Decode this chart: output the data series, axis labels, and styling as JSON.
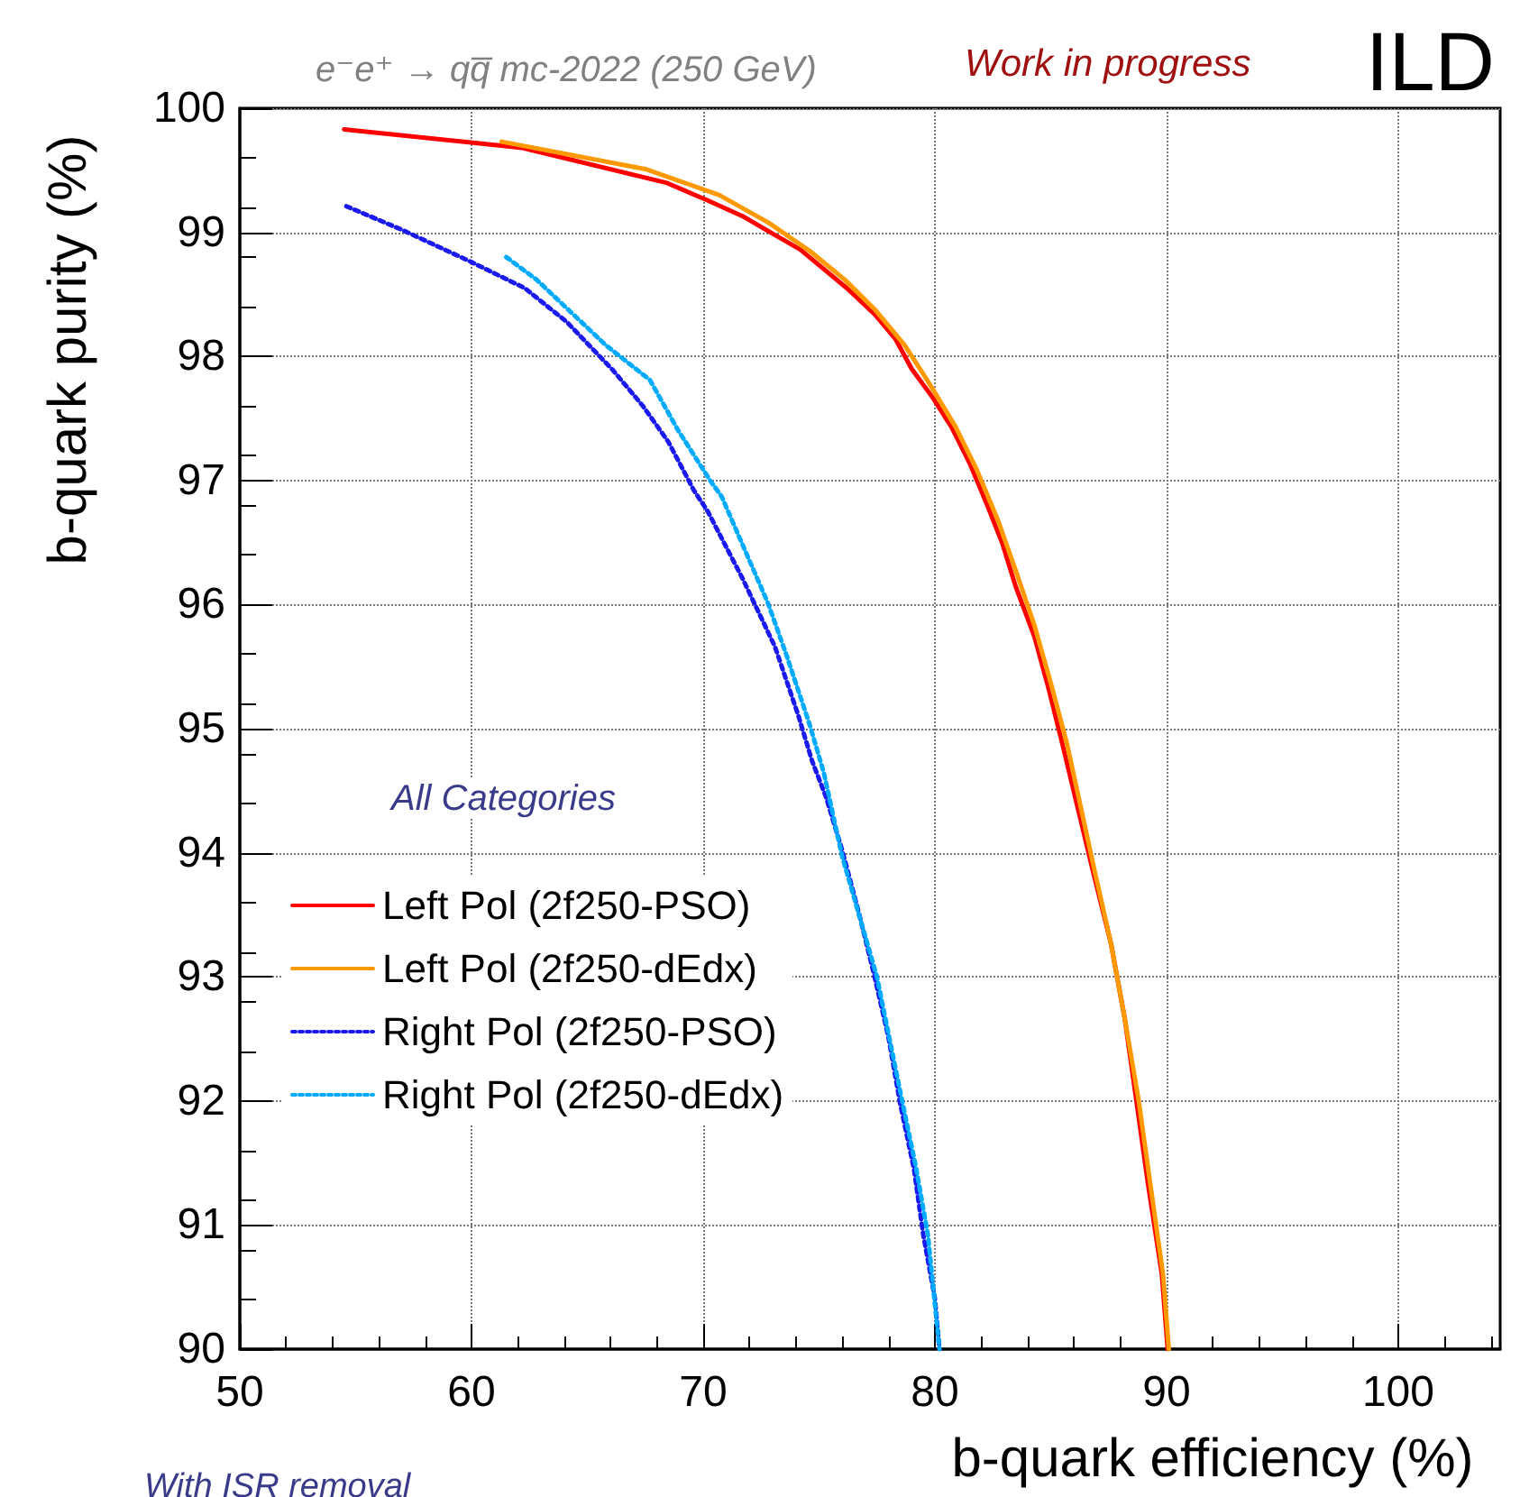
{
  "chart_data": {
    "type": "line",
    "title": "e⁻e⁺ → qq̅ mc-2022 (250 GeV)",
    "xlabel": "b-quark efficiency (%)",
    "ylabel": "b-quark purity (%)",
    "annotations": [
      "Work in progress",
      "ILD",
      "All Categories",
      "With ISR removal"
    ],
    "xlim": [
      50,
      104.4
    ],
    "xticks": [
      50,
      60,
      70,
      80,
      90,
      100
    ],
    "ylim": [
      90,
      100
    ],
    "yticks": [
      90,
      91,
      92,
      93,
      94,
      95,
      96,
      97,
      98,
      99,
      100
    ],
    "grid": true,
    "legend": "left",
    "marker": "none",
    "series": [
      {
        "name": "Left Pol (2f250-PSO)",
        "color": "#ff0000",
        "line_style": "solid",
        "x": [
          54.5,
          62.2,
          68.4,
          70.15,
          71.7,
          72.9,
          74.2,
          76.2,
          77.4,
          78.3,
          79.0,
          79.9,
          80.75,
          81.5,
          82.2,
          82.9,
          83.5,
          84.3,
          84.9,
          85.5,
          86.8,
          87.6,
          88.2,
          88.7,
          89.2,
          89.8,
          90.05
        ],
        "values": [
          99.83,
          99.68,
          99.4,
          99.26,
          99.13,
          99.0,
          98.86,
          98.55,
          98.34,
          98.14,
          97.9,
          97.67,
          97.42,
          97.14,
          96.83,
          96.5,
          96.14,
          95.74,
          95.33,
          94.88,
          93.87,
          93.27,
          92.66,
          92.0,
          91.33,
          90.6,
          90.0
        ]
      },
      {
        "name": "Left Pol (2f250-dEdx)",
        "color": "#ff9900",
        "line_style": "solid",
        "x": [
          61.3,
          67.5,
          70.7,
          72.8,
          74.6,
          76.1,
          77.45,
          78.7,
          79.8,
          80.9,
          81.8,
          82.7,
          83.5,
          84.3,
          85.0,
          85.7,
          86.9,
          87.6,
          88.2,
          88.8,
          89.3,
          89.85,
          90.1
        ],
        "values": [
          99.73,
          99.51,
          99.3,
          99.08,
          98.85,
          98.62,
          98.37,
          98.09,
          97.77,
          97.43,
          97.09,
          96.69,
          96.27,
          95.83,
          95.37,
          94.88,
          93.85,
          93.27,
          92.66,
          92.0,
          91.33,
          90.6,
          90.0
        ]
      },
      {
        "name": "Right Pol (2f250-PSO)",
        "color": "#1a1aee",
        "line_style": "dotted",
        "x": [
          54.6,
          57.0,
          60.0,
          62.3,
          64.1,
          66.1,
          67.4,
          68.5,
          69.6,
          70.2,
          71.7,
          73.1,
          74.1,
          74.7,
          75.3,
          76.0,
          76.7,
          77.4,
          78.0,
          78.5,
          79.1,
          79.5,
          80.0,
          80.2
        ],
        "values": [
          99.21,
          99.02,
          98.76,
          98.55,
          98.28,
          97.89,
          97.6,
          97.31,
          96.92,
          96.75,
          96.21,
          95.66,
          95.11,
          94.74,
          94.45,
          94.02,
          93.53,
          93.0,
          92.51,
          91.98,
          91.45,
          90.92,
          90.41,
          90.0
        ]
      },
      {
        "name": "Right Pol (2f250-dEdx)",
        "color": "#00aaff",
        "line_style": "dotted",
        "x": [
          61.5,
          62.8,
          65.8,
          67.7,
          68.9,
          70.3,
          70.8,
          72.8,
          73.6,
          74.6,
          75.2,
          76.0,
          77.5,
          78.5,
          79.2,
          79.7,
          80.2
        ],
        "values": [
          98.8,
          98.62,
          98.09,
          97.81,
          97.41,
          97.0,
          96.87,
          96.01,
          95.59,
          95.03,
          94.65,
          93.97,
          93.0,
          92.08,
          91.45,
          90.92,
          90.0
        ]
      }
    ]
  }
}
